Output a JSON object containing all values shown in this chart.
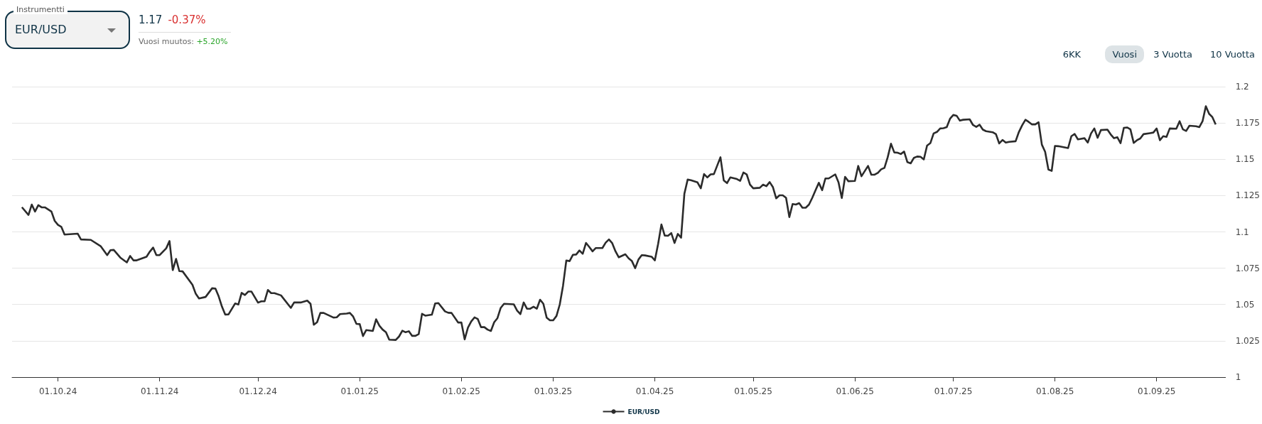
{
  "chart_data": {
    "type": "line",
    "title": "EUR/USD",
    "annotations": [
      "Instrumentti",
      "1.17",
      "-0.37%",
      "Vuosi muutos:",
      "+5.20%",
      "6KK",
      "Vuosi",
      "3 Vuotta",
      "10 Vuotta"
    ],
    "x": [
      "2024-09-20",
      "2024-09-22",
      "2024-09-23",
      "2024-09-24",
      "2024-09-25",
      "2024-09-26",
      "2024-09-27",
      "2024-09-29",
      "2024-09-30",
      "2024-10-01",
      "2024-10-02",
      "2024-10-03",
      "2024-10-07",
      "2024-10-08",
      "2024-10-11",
      "2024-10-14",
      "2024-10-16",
      "2024-10-17",
      "2024-10-18",
      "2024-10-20",
      "2024-10-22",
      "2024-10-23",
      "2024-10-24",
      "2024-10-25",
      "2024-10-28",
      "2024-10-29",
      "2024-10-30",
      "2024-10-31",
      "2024-11-01",
      "2024-11-03",
      "2024-11-04",
      "2024-11-05",
      "2024-11-06",
      "2024-11-07",
      "2024-11-08",
      "2024-11-11",
      "2024-11-12",
      "2024-11-13",
      "2024-11-15",
      "2024-11-17",
      "2024-11-18",
      "2024-11-19",
      "2024-11-20",
      "2024-11-21",
      "2024-11-22",
      "2024-11-24",
      "2024-11-25",
      "2024-11-26",
      "2024-11-27",
      "2024-11-28",
      "2024-11-29",
      "2024-12-01",
      "2024-12-02",
      "2024-12-03",
      "2024-12-04",
      "2024-12-05",
      "2024-12-06",
      "2024-12-08",
      "2024-12-11",
      "2024-12-12",
      "2024-12-14",
      "2024-12-16",
      "2024-12-17",
      "2024-12-18",
      "2024-12-19",
      "2024-12-20",
      "2024-12-21",
      "2024-12-24",
      "2024-12-25",
      "2024-12-26",
      "2024-12-28",
      "2024-12-29",
      "2024-12-30",
      "2024-12-31",
      "2025-01-01",
      "2025-01-02",
      "2025-01-03",
      "2025-01-05",
      "2025-01-06",
      "2025-01-07",
      "2025-01-08",
      "2025-01-09",
      "2025-01-10",
      "2025-01-12",
      "2025-01-13",
      "2025-01-14",
      "2025-01-15",
      "2025-01-16",
      "2025-01-17",
      "2025-01-18",
      "2025-01-19",
      "2025-01-20",
      "2025-01-21",
      "2025-01-23",
      "2025-01-24",
      "2025-01-25",
      "2025-01-27",
      "2025-01-28",
      "2025-01-29",
      "2025-01-31",
      "2025-02-01",
      "2025-02-02",
      "2025-02-03",
      "2025-02-04",
      "2025-02-05",
      "2025-02-06",
      "2025-02-07",
      "2025-02-08",
      "2025-02-09",
      "2025-02-10",
      "2025-02-11",
      "2025-02-12",
      "2025-02-13",
      "2025-02-14",
      "2025-02-17",
      "2025-02-18",
      "2025-02-19",
      "2025-02-20",
      "2025-02-21",
      "2025-02-22",
      "2025-02-23",
      "2025-02-24",
      "2025-02-25",
      "2025-02-26",
      "2025-02-27",
      "2025-02-28",
      "2025-03-01",
      "2025-03-02",
      "2025-03-03",
      "2025-03-04",
      "2025-03-05",
      "2025-03-06",
      "2025-03-07",
      "2025-03-08",
      "2025-03-09",
      "2025-03-10",
      "2025-03-11",
      "2025-03-12",
      "2025-03-13",
      "2025-03-14",
      "2025-03-16",
      "2025-03-17",
      "2025-03-18",
      "2025-03-19",
      "2025-03-20",
      "2025-03-21",
      "2025-03-23",
      "2025-03-24",
      "2025-03-25",
      "2025-03-26",
      "2025-03-27",
      "2025-03-28",
      "2025-03-29",
      "2025-03-31",
      "2025-04-01",
      "2025-04-02",
      "2025-04-03",
      "2025-04-04",
      "2025-04-05",
      "2025-04-06",
      "2025-04-07",
      "2025-04-08",
      "2025-04-09",
      "2025-04-10",
      "2025-04-11",
      "2025-04-12",
      "2025-04-14",
      "2025-04-15",
      "2025-04-16",
      "2025-04-17",
      "2025-04-18",
      "2025-04-19",
      "2025-04-21",
      "2025-04-22",
      "2025-04-23",
      "2025-04-24",
      "2025-04-26",
      "2025-04-27",
      "2025-04-28",
      "2025-04-29",
      "2025-04-30",
      "2025-05-01",
      "2025-05-03",
      "2025-05-04",
      "2025-05-05",
      "2025-05-06",
      "2025-05-07",
      "2025-05-08",
      "2025-05-09",
      "2025-05-10",
      "2025-05-11",
      "2025-05-12",
      "2025-05-13",
      "2025-05-14",
      "2025-05-15",
      "2025-05-16",
      "2025-05-17",
      "2025-05-18",
      "2025-05-19",
      "2025-05-20",
      "2025-05-21",
      "2025-05-22",
      "2025-05-23",
      "2025-05-24",
      "2025-05-26",
      "2025-05-27",
      "2025-05-28",
      "2025-05-29",
      "2025-05-30",
      "2025-06-01",
      "2025-06-02",
      "2025-06-03",
      "2025-06-05",
      "2025-06-06",
      "2025-06-07",
      "2025-06-08",
      "2025-06-09",
      "2025-06-10",
      "2025-06-11",
      "2025-06-12",
      "2025-06-13",
      "2025-06-14",
      "2025-06-15",
      "2025-06-16",
      "2025-06-17",
      "2025-06-18",
      "2025-06-19",
      "2025-06-20",
      "2025-06-21",
      "2025-06-22",
      "2025-06-23",
      "2025-06-24",
      "2025-06-25",
      "2025-06-26",
      "2025-06-27",
      "2025-06-28",
      "2025-06-29",
      "2025-06-30",
      "2025-07-01",
      "2025-07-02",
      "2025-07-03",
      "2025-07-04",
      "2025-07-06",
      "2025-07-07",
      "2025-07-08",
      "2025-07-09",
      "2025-07-10",
      "2025-07-11",
      "2025-07-13",
      "2025-07-14",
      "2025-07-15",
      "2025-07-16",
      "2025-07-17",
      "2025-07-18",
      "2025-07-20",
      "2025-07-21",
      "2025-07-22",
      "2025-07-23",
      "2025-07-24",
      "2025-07-25",
      "2025-07-26",
      "2025-07-27",
      "2025-07-28",
      "2025-07-29",
      "2025-07-30",
      "2025-07-31",
      "2025-08-01",
      "2025-08-02",
      "2025-08-05",
      "2025-08-06",
      "2025-08-07",
      "2025-08-08",
      "2025-08-10",
      "2025-08-11",
      "2025-08-12",
      "2025-08-13",
      "2025-08-14",
      "2025-08-15",
      "2025-08-17",
      "2025-08-18",
      "2025-08-19",
      "2025-08-20",
      "2025-08-21",
      "2025-08-22",
      "2025-08-23",
      "2025-08-24",
      "2025-08-25",
      "2025-08-26",
      "2025-08-27",
      "2025-08-28",
      "2025-08-30",
      "2025-08-31",
      "2025-09-01",
      "2025-09-02",
      "2025-09-03",
      "2025-09-04",
      "2025-09-05",
      "2025-09-07",
      "2025-09-08",
      "2025-09-09",
      "2025-09-10",
      "2025-09-11",
      "2025-09-13",
      "2025-09-14",
      "2025-09-15",
      "2025-09-16",
      "2025-09-17",
      "2025-09-18",
      "2025-09-19"
    ],
    "series": [
      {
        "name": "EUR/USD",
        "color": "#2b2b2b",
        "values": [
          1.117,
          1.1117,
          1.1188,
          1.114,
          1.1184,
          1.1169,
          1.1169,
          1.114,
          1.1076,
          1.1048,
          1.1035,
          1.0982,
          1.0988,
          1.0948,
          1.0945,
          1.0902,
          1.084,
          1.0874,
          1.0876,
          1.0823,
          1.079,
          1.0834,
          1.0804,
          1.0804,
          1.0829,
          1.0864,
          1.0892,
          1.084,
          1.084,
          1.0887,
          1.0937,
          1.0737,
          1.0814,
          1.073,
          1.0728,
          1.0636,
          1.0574,
          1.0542,
          1.0552,
          1.0612,
          1.061,
          1.0556,
          1.0485,
          1.043,
          1.0432,
          1.0507,
          1.05,
          1.058,
          1.0565,
          1.0589,
          1.0589,
          1.0513,
          1.0522,
          1.0522,
          1.06,
          1.0578,
          1.0578,
          1.0563,
          1.0477,
          1.0514,
          1.0514,
          1.0527,
          1.0505,
          1.0361,
          1.0378,
          1.0442,
          1.0442,
          1.041,
          1.0412,
          1.0434,
          1.0438,
          1.0442,
          1.0417,
          1.0367,
          1.0365,
          1.0283,
          1.0324,
          1.0318,
          1.0398,
          1.0354,
          1.0327,
          1.0309,
          1.0258,
          1.0256,
          1.028,
          1.032,
          1.0309,
          1.0316,
          1.0284,
          1.0284,
          1.0297,
          1.0436,
          1.0423,
          1.043,
          1.0507,
          1.051,
          1.0453,
          1.0443,
          1.0442,
          1.0376,
          1.0376,
          1.026,
          1.034,
          1.0383,
          1.0411,
          1.04,
          1.0344,
          1.0344,
          1.0327,
          1.0318,
          1.0378,
          1.0406,
          1.0477,
          1.0505,
          1.0501,
          1.0458,
          1.0434,
          1.0514,
          1.0471,
          1.0471,
          1.0485,
          1.0471,
          1.0533,
          1.0505,
          1.041,
          1.0391,
          1.0391,
          1.0421,
          1.05,
          1.063,
          1.0803,
          1.0799,
          1.0842,
          1.0844,
          1.0872,
          1.0849,
          1.0924,
          1.0896,
          1.0866,
          1.0889,
          1.0889,
          1.0926,
          1.0948,
          1.0922,
          1.0866,
          1.0825,
          1.0846,
          1.0818,
          1.0799,
          1.075,
          1.081,
          1.084,
          1.0838,
          1.0829,
          1.0804,
          1.0918,
          1.1051,
          1.0975,
          1.0973,
          1.0992,
          1.0924,
          1.0986,
          1.096,
          1.1263,
          1.136,
          1.1356,
          1.1341,
          1.13,
          1.1398,
          1.1375,
          1.1396,
          1.1398,
          1.1514,
          1.1355,
          1.1336,
          1.1375,
          1.1364,
          1.1351,
          1.1409,
          1.1396,
          1.1326,
          1.13,
          1.1304,
          1.1325,
          1.1315,
          1.1343,
          1.1308,
          1.1231,
          1.1252,
          1.1252,
          1.1235,
          1.1102,
          1.1192,
          1.1188,
          1.1198,
          1.1166,
          1.1166,
          1.1188,
          1.1235,
          1.1287,
          1.1338,
          1.1287,
          1.1368,
          1.1368,
          1.1396,
          1.1341,
          1.1233,
          1.1379,
          1.1349,
          1.1351,
          1.1454,
          1.1383,
          1.1454,
          1.1394,
          1.1394,
          1.1407,
          1.1431,
          1.1441,
          1.1514,
          1.1607,
          1.1547,
          1.1545,
          1.1536,
          1.1553,
          1.148,
          1.1472,
          1.151,
          1.1519,
          1.1517,
          1.1499,
          1.1594,
          1.1611,
          1.1678,
          1.1688,
          1.1712,
          1.1714,
          1.1721,
          1.1779,
          1.1805,
          1.18,
          1.1766,
          1.1772,
          1.1775,
          1.1736,
          1.1723,
          1.1738,
          1.1704,
          1.1693,
          1.1686,
          1.1673,
          1.1609,
          1.1633,
          1.1615,
          1.162,
          1.1624,
          1.1688,
          1.1734,
          1.1772,
          1.1757,
          1.174,
          1.174,
          1.1755,
          1.1601,
          1.1551,
          1.1429,
          1.142,
          1.1592,
          1.159,
          1.1577,
          1.1659,
          1.1674,
          1.1637,
          1.1645,
          1.1615,
          1.1678,
          1.1712,
          1.1648,
          1.1701,
          1.1704,
          1.1671,
          1.1645,
          1.1652,
          1.1611,
          1.1716,
          1.1719,
          1.1706,
          1.1613,
          1.1631,
          1.1643,
          1.1673,
          1.168,
          1.1684,
          1.1712,
          1.1631,
          1.1659,
          1.1654,
          1.1712,
          1.171,
          1.1762,
          1.1706,
          1.1695,
          1.1731,
          1.1727,
          1.1721,
          1.1762,
          1.1865,
          1.1813,
          1.179,
          1.174
        ]
      }
    ],
    "xlim": [
      "2024-09-17",
      "2025-09-22"
    ],
    "xticks": [
      {
        "value": "2024-10-01",
        "label": "01.10.24"
      },
      {
        "value": "2024-11-01",
        "label": "01.11.24"
      },
      {
        "value": "2024-12-01",
        "label": "01.12.24"
      },
      {
        "value": "2025-01-01",
        "label": "01.01.25"
      },
      {
        "value": "2025-02-01",
        "label": "01.02.25"
      },
      {
        "value": "2025-03-01",
        "label": "01.03.25"
      },
      {
        "value": "2025-04-01",
        "label": "01.04.25"
      },
      {
        "value": "2025-05-01",
        "label": "01.05.25"
      },
      {
        "value": "2025-06-01",
        "label": "01.06.25"
      },
      {
        "value": "2025-07-01",
        "label": "01.07.25"
      },
      {
        "value": "2025-08-01",
        "label": "01.08.25"
      },
      {
        "value": "2025-09-01",
        "label": "01.09.25"
      }
    ],
    "ylim": [
      1,
      1.2
    ],
    "yticks": [
      1,
      1.025,
      1.05,
      1.075,
      1.1,
      1.125,
      1.15,
      1.175,
      1.2
    ],
    "grid": "y",
    "legend": "bottom"
  }
}
